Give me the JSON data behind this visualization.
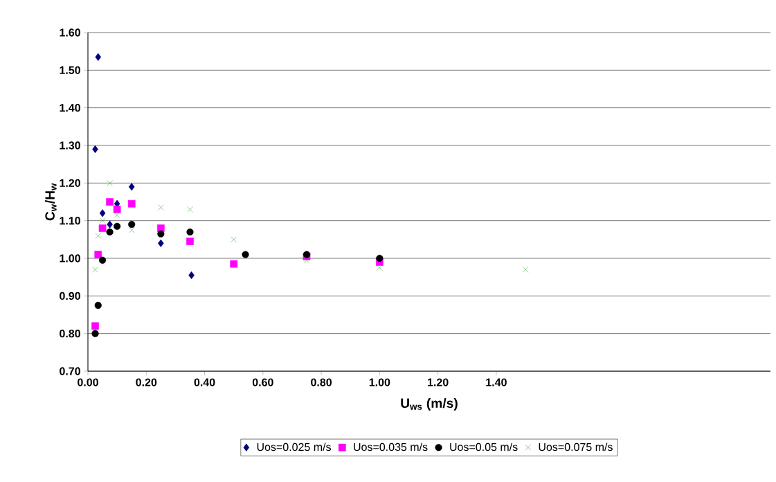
{
  "chart_data": {
    "type": "scatter",
    "xlabel": "U$_{ws}$ (m/s)",
    "ylabel": "C$_{w}$/H$_{w}$",
    "xlim": [
      0,
      2.34
    ],
    "xticks": [
      {
        "value": 0,
        "label": "0.00"
      },
      {
        "value": 0.2,
        "label": "0.20"
      },
      {
        "value": 0.4,
        "label": "0.40"
      },
      {
        "value": 0.6,
        "label": "0.60"
      },
      {
        "value": 0.8,
        "label": "0.80"
      },
      {
        "value": 1.0,
        "label": "1.00"
      },
      {
        "value": 1.2,
        "label": "1.20"
      },
      {
        "value": 1.4,
        "label": "1.40"
      }
    ],
    "ylim": [
      0.7,
      1.6
    ],
    "yticks": [
      {
        "value": 0.7,
        "label": "0.70"
      },
      {
        "value": 0.8,
        "label": "0.80"
      },
      {
        "value": 0.9,
        "label": "0.90"
      },
      {
        "value": 1.0,
        "label": "1.00"
      },
      {
        "value": 1.1,
        "label": "1.10"
      },
      {
        "value": 1.2,
        "label": "1.20"
      },
      {
        "value": 1.3,
        "label": "1.30"
      },
      {
        "value": 1.4,
        "label": "1.40"
      },
      {
        "value": 1.5,
        "label": "1.50"
      },
      {
        "value": 1.6,
        "label": "1.60"
      }
    ],
    "grid": "y",
    "legend": "bottom",
    "series": [
      {
        "name": "Uos=0.025 m/s",
        "color": "#000080",
        "marker": "diamond",
        "x": [
          0.025,
          0.035,
          0.05,
          0.075,
          0.1,
          0.15,
          0.25,
          0.355
        ],
        "values": [
          1.29,
          1.535,
          1.12,
          1.09,
          1.145,
          1.19,
          1.04,
          0.955
        ]
      },
      {
        "name": "Uos=0.035 m/s",
        "color": "#ff00ff",
        "marker": "square",
        "x": [
          0.025,
          0.035,
          0.05,
          0.075,
          0.1,
          0.15,
          0.25,
          0.35,
          0.5,
          0.75,
          1.0
        ],
        "values": [
          0.82,
          1.01,
          1.08,
          1.15,
          1.13,
          1.145,
          1.08,
          1.045,
          0.985,
          1.005,
          0.99
        ]
      },
      {
        "name": "Uos=0.05 m/s",
        "color": "#000000",
        "marker": "circle",
        "x": [
          0.025,
          0.035,
          0.05,
          0.075,
          0.1,
          0.15,
          0.25,
          0.35,
          0.54,
          0.75,
          1.0
        ],
        "values": [
          0.8,
          0.875,
          0.995,
          1.07,
          1.085,
          1.09,
          1.065,
          1.07,
          1.01,
          1.01,
          1.0
        ]
      },
      {
        "name": "Uos=0.075 m/s",
        "color": "#339933",
        "marker": "cross",
        "x": [
          0.025,
          0.035,
          0.05,
          0.075,
          0.1,
          0.15,
          0.25,
          0.35,
          0.5,
          0.75,
          1.0,
          1.5
        ],
        "values": [
          0.97,
          1.06,
          1.1,
          1.2,
          1.115,
          1.075,
          1.135,
          1.13,
          1.05,
          0.995,
          0.975,
          0.97
        ]
      }
    ]
  }
}
